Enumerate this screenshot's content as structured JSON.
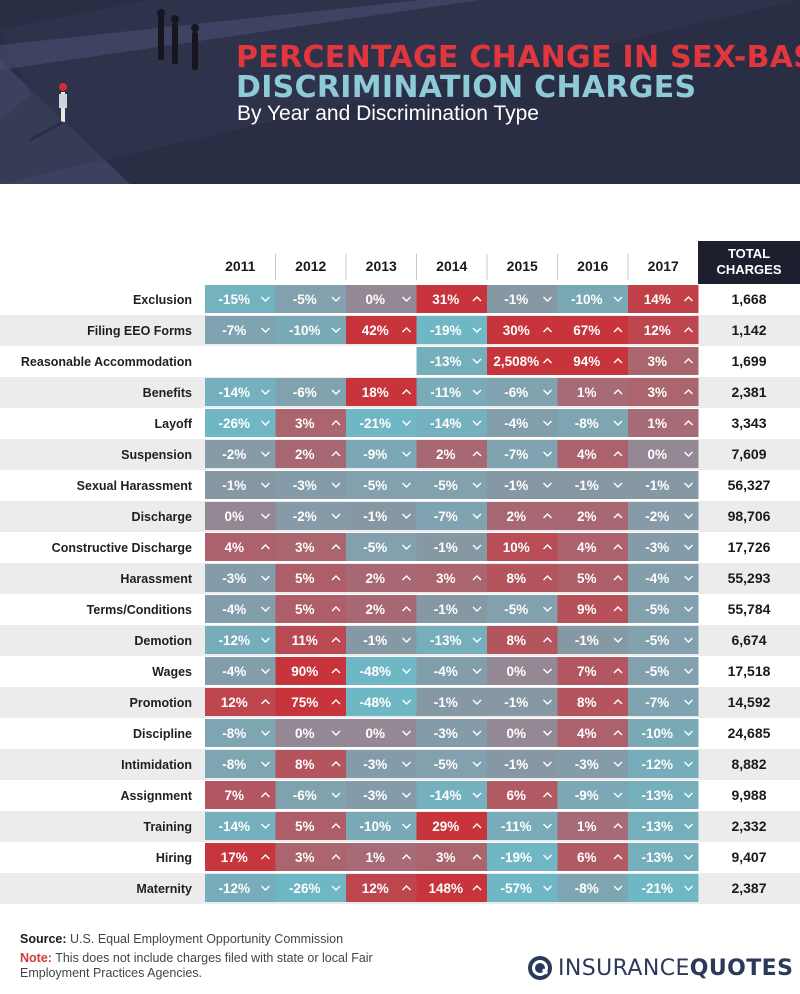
{
  "header": {
    "title_line_1": "PERCENTAGE CHANGE IN SEX-BASED",
    "title_line_2": "DISCRIMINATION CHARGES",
    "subtitle": "By Year and Discrimination Type"
  },
  "chart_data": {
    "type": "heatmap",
    "title": "PERCENTAGE CHANGE IN SEX-BASED DISCRIMINATION CHARGES",
    "subtitle": "By Year and Discrimination Type",
    "columns": [
      "2011",
      "2012",
      "2013",
      "2014",
      "2015",
      "2016",
      "2017"
    ],
    "total_header": [
      "TOTAL",
      "CHARGES"
    ],
    "rows": [
      {
        "label": "Exclusion",
        "values": [
          -15,
          -5,
          0,
          31,
          -1,
          -10,
          14
        ],
        "display": [
          "-15%",
          "-5%",
          "0%",
          "31%",
          "-1%",
          "-10%",
          "14%"
        ],
        "total": "1,668"
      },
      {
        "label": "Filing EEO Forms",
        "values": [
          -7,
          -10,
          42,
          -19,
          30,
          67,
          12
        ],
        "display": [
          "-7%",
          "-10%",
          "42%",
          "-19%",
          "30%",
          "67%",
          "12%"
        ],
        "total": "1,142"
      },
      {
        "label": "Reasonable Accommodation",
        "values": [
          null,
          null,
          null,
          -13,
          2508,
          94,
          3
        ],
        "display": [
          "",
          "",
          "",
          "-13%",
          "2,508%",
          "94%",
          "3%"
        ],
        "total": "1,699"
      },
      {
        "label": "Benefits",
        "values": [
          -14,
          -6,
          18,
          -11,
          -6,
          1,
          3
        ],
        "display": [
          "-14%",
          "-6%",
          "18%",
          "-11%",
          "-6%",
          "1%",
          "3%"
        ],
        "total": "2,381"
      },
      {
        "label": "Layoff",
        "values": [
          -26,
          3,
          -21,
          -14,
          -4,
          -8,
          1
        ],
        "display": [
          "-26%",
          "3%",
          "-21%",
          "-14%",
          "-4%",
          "-8%",
          "1%"
        ],
        "total": "3,343"
      },
      {
        "label": "Suspension",
        "values": [
          -2,
          2,
          -9,
          2,
          -7,
          4,
          0
        ],
        "display": [
          "-2%",
          "2%",
          "-9%",
          "2%",
          "-7%",
          "4%",
          "0%"
        ],
        "total": "7,609"
      },
      {
        "label": "Sexual Harassment",
        "values": [
          -1,
          -3,
          -5,
          -5,
          -1,
          -1,
          -1
        ],
        "display": [
          "-1%",
          "-3%",
          "-5%",
          "-5%",
          "-1%",
          "-1%",
          "-1%"
        ],
        "total": "56,327"
      },
      {
        "label": "Discharge",
        "values": [
          0,
          -2,
          -1,
          -7,
          2,
          2,
          -2
        ],
        "display": [
          "0%",
          "-2%",
          "-1%",
          "-7%",
          "2%",
          "2%",
          "-2%"
        ],
        "total": "98,706"
      },
      {
        "label": "Constructive Discharge",
        "values": [
          4,
          3,
          -5,
          -1,
          10,
          4,
          -3
        ],
        "display": [
          "4%",
          "3%",
          "-5%",
          "-1%",
          "10%",
          "4%",
          "-3%"
        ],
        "total": "17,726"
      },
      {
        "label": "Harassment",
        "values": [
          -3,
          5,
          2,
          3,
          8,
          5,
          -4
        ],
        "display": [
          "-3%",
          "5%",
          "2%",
          "3%",
          "8%",
          "5%",
          "-4%"
        ],
        "total": "55,293"
      },
      {
        "label": "Terms/Conditions",
        "values": [
          -4,
          5,
          2,
          -1,
          -5,
          9,
          -5
        ],
        "display": [
          "-4%",
          "5%",
          "2%",
          "-1%",
          "-5%",
          "9%",
          "-5%"
        ],
        "total": "55,784"
      },
      {
        "label": "Demotion",
        "values": [
          -12,
          11,
          -1,
          -13,
          8,
          -1,
          -5
        ],
        "display": [
          "-12%",
          "11%",
          "-1%",
          "-13%",
          "8%",
          "-1%",
          "-5%"
        ],
        "total": "6,674"
      },
      {
        "label": "Wages",
        "values": [
          -4,
          90,
          -48,
          -4,
          0,
          7,
          -5
        ],
        "display": [
          "-4%",
          "90%",
          "-48%",
          "-4%",
          "0%",
          "7%",
          "-5%"
        ],
        "total": "17,518"
      },
      {
        "label": "Promotion",
        "values": [
          12,
          75,
          -48,
          -1,
          -1,
          8,
          -7
        ],
        "display": [
          "12%",
          "75%",
          "-48%",
          "-1%",
          "-1%",
          "8%",
          "-7%"
        ],
        "total": "14,592"
      },
      {
        "label": "Discipline",
        "values": [
          -8,
          0,
          0,
          -3,
          0,
          4,
          -10
        ],
        "display": [
          "-8%",
          "0%",
          "0%",
          "-3%",
          "0%",
          "4%",
          "-10%"
        ],
        "total": "24,685"
      },
      {
        "label": "Intimidation",
        "values": [
          -8,
          8,
          -3,
          -5,
          -1,
          -3,
          -12
        ],
        "display": [
          "-8%",
          "8%",
          "-3%",
          "-5%",
          "-1%",
          "-3%",
          "-12%"
        ],
        "total": "8,882"
      },
      {
        "label": "Assignment",
        "values": [
          7,
          -6,
          -3,
          -14,
          6,
          -9,
          -13
        ],
        "display": [
          "7%",
          "-6%",
          "-3%",
          "-14%",
          "6%",
          "-9%",
          "-13%"
        ],
        "total": "9,988"
      },
      {
        "label": "Training",
        "values": [
          -14,
          5,
          -10,
          29,
          -11,
          1,
          -13
        ],
        "display": [
          "-14%",
          "5%",
          "-10%",
          "29%",
          "-11%",
          "1%",
          "-13%"
        ],
        "total": "2,332"
      },
      {
        "label": "Hiring",
        "values": [
          17,
          3,
          1,
          3,
          -19,
          6,
          -13
        ],
        "display": [
          "17%",
          "3%",
          "1%",
          "3%",
          "-19%",
          "6%",
          "-13%"
        ],
        "total": "9,407"
      },
      {
        "label": "Maternity",
        "values": [
          -12,
          -26,
          12,
          148,
          -57,
          -8,
          -21
        ],
        "display": [
          "-12%",
          "-26%",
          "12%",
          "148%",
          "-57%",
          "-8%",
          "-21%"
        ],
        "total": "2,387"
      }
    ],
    "colors": {
      "increase": "#c8343b",
      "decrease": "#6fb7c4",
      "neutral": "#948895",
      "row_alt": "#ececec",
      "total_header_bg": "#1d1f2e"
    }
  },
  "footer": {
    "source_label": "Source:",
    "source_text": "U.S. Equal Employment Opportunity Commission",
    "note_label": "Note:",
    "note_text": "This does not include charges filed with state or local Fair Employment Practices Agencies.",
    "brand_word_a": "INSURANCE",
    "brand_word_b": "QUOTES",
    "brand_icon": "insurancequotes-logo-icon"
  }
}
